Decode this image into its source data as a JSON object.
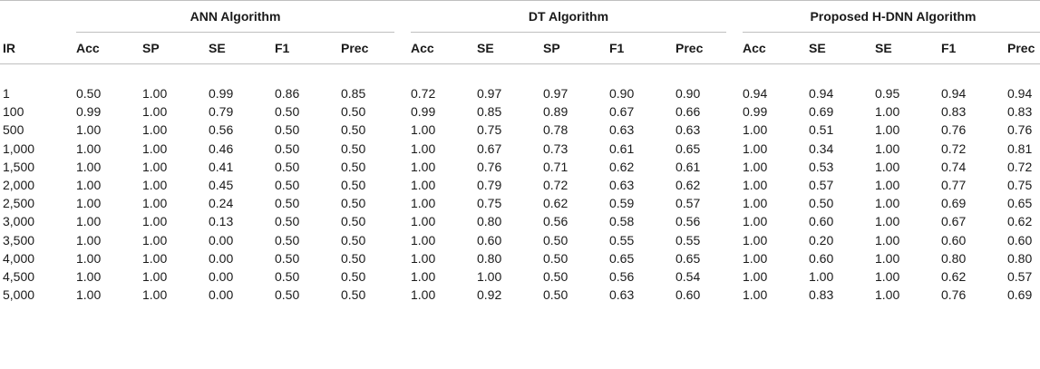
{
  "groups": [
    {
      "label": "ANN Algorithm"
    },
    {
      "label": "DT Algorithm"
    },
    {
      "label": "Proposed H-DNN Algorithm"
    }
  ],
  "columns": [
    "IR",
    "Acc",
    "SP",
    "SE",
    "F1",
    "Prec",
    "Acc",
    "SE",
    "SP",
    "F1",
    "Prec",
    "Acc",
    "SE",
    "SE",
    "F1",
    "Prec"
  ],
  "rows": [
    [
      "1",
      "0.50",
      "1.00",
      "0.99",
      "0.86",
      "0.85",
      "0.72",
      "0.97",
      "0.97",
      "0.90",
      "0.90",
      "0.94",
      "0.94",
      "0.95",
      "0.94",
      "0.94"
    ],
    [
      "100",
      "0.99",
      "1.00",
      "0.79",
      "0.50",
      "0.50",
      "0.99",
      "0.85",
      "0.89",
      "0.67",
      "0.66",
      "0.99",
      "0.69",
      "1.00",
      "0.83",
      "0.83"
    ],
    [
      "500",
      "1.00",
      "1.00",
      "0.56",
      "0.50",
      "0.50",
      "1.00",
      "0.75",
      "0.78",
      "0.63",
      "0.63",
      "1.00",
      "0.51",
      "1.00",
      "0.76",
      "0.76"
    ],
    [
      "1,000",
      "1.00",
      "1.00",
      "0.46",
      "0.50",
      "0.50",
      "1.00",
      "0.67",
      "0.73",
      "0.61",
      "0.65",
      "1.00",
      "0.34",
      "1.00",
      "0.72",
      "0.81"
    ],
    [
      "1,500",
      "1.00",
      "1.00",
      "0.41",
      "0.50",
      "0.50",
      "1.00",
      "0.76",
      "0.71",
      "0.62",
      "0.61",
      "1.00",
      "0.53",
      "1.00",
      "0.74",
      "0.72"
    ],
    [
      "2,000",
      "1.00",
      "1.00",
      "0.45",
      "0.50",
      "0.50",
      "1.00",
      "0.79",
      "0.72",
      "0.63",
      "0.62",
      "1.00",
      "0.57",
      "1.00",
      "0.77",
      "0.75"
    ],
    [
      "2,500",
      "1.00",
      "1.00",
      "0.24",
      "0.50",
      "0.50",
      "1.00",
      "0.75",
      "0.62",
      "0.59",
      "0.57",
      "1.00",
      "0.50",
      "1.00",
      "0.69",
      "0.65"
    ],
    [
      "3,000",
      "1.00",
      "1.00",
      "0.13",
      "0.50",
      "0.50",
      "1.00",
      "0.80",
      "0.56",
      "0.58",
      "0.56",
      "1.00",
      "0.60",
      "1.00",
      "0.67",
      "0.62"
    ],
    [
      "3,500",
      "1.00",
      "1.00",
      "0.00",
      "0.50",
      "0.50",
      "1.00",
      "0.60",
      "0.50",
      "0.55",
      "0.55",
      "1.00",
      "0.20",
      "1.00",
      "0.60",
      "0.60"
    ],
    [
      "4,000",
      "1.00",
      "1.00",
      "0.00",
      "0.50",
      "0.50",
      "1.00",
      "0.80",
      "0.50",
      "0.65",
      "0.65",
      "1.00",
      "0.60",
      "1.00",
      "0.80",
      "0.80"
    ],
    [
      "4,500",
      "1.00",
      "1.00",
      "0.00",
      "0.50",
      "0.50",
      "1.00",
      "1.00",
      "0.50",
      "0.56",
      "0.54",
      "1.00",
      "1.00",
      "1.00",
      "0.62",
      "0.57"
    ],
    [
      "5,000",
      "1.00",
      "1.00",
      "0.00",
      "0.50",
      "0.50",
      "1.00",
      "0.92",
      "0.50",
      "0.63",
      "0.60",
      "1.00",
      "0.83",
      "1.00",
      "0.76",
      "0.69"
    ]
  ]
}
